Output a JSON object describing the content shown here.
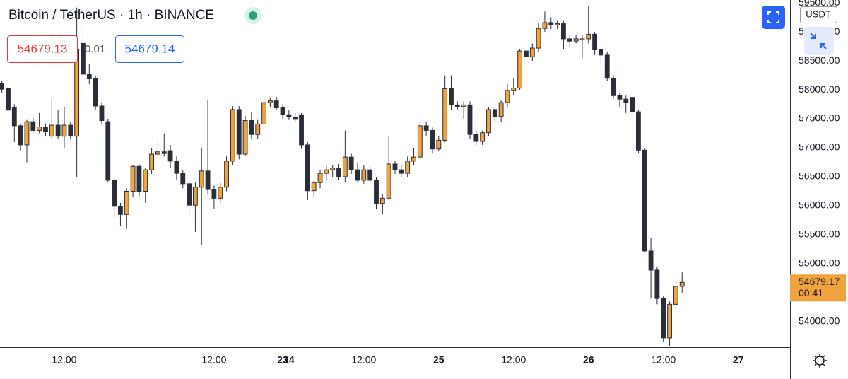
{
  "chart_data": {
    "type": "candlestick",
    "title": "Bitcoin / TetherUS · 1h · BINANCE",
    "order_panel": {
      "sell": "54679.13",
      "spread": "0.01",
      "buy": "54679.14"
    },
    "currency": "USDT",
    "last_price": 54679.17,
    "countdown": "00:41",
    "up_color": "#f0a23c",
    "down_color": "#2a2e39",
    "grid": false,
    "xlim": [
      -22.3,
      104.3
    ],
    "ylim": [
      53560,
      59550
    ],
    "xticks": [
      {
        "value": -12,
        "label": "12:00"
      },
      23,
      {
        "value": 12,
        "label": "12:00"
      },
      {
        "value": 24,
        "label": "24"
      },
      {
        "value": 36,
        "label": "12:00"
      },
      {
        "value": 48,
        "label": "25"
      },
      {
        "value": 60,
        "label": "12:00"
      },
      {
        "value": 72,
        "label": "26"
      },
      {
        "value": 84,
        "label": "12:00"
      },
      {
        "value": 96,
        "label": "27"
      }
    ],
    "yticks": [
      {
        "value": 54000,
        "label": "54000.00"
      },
      {
        "value": 54500,
        "label": "54500.00"
      },
      {
        "value": 55000,
        "label": "55000.00"
      },
      {
        "value": 55500,
        "label": "55500.00"
      },
      {
        "value": 56000,
        "label": "56000.00"
      },
      {
        "value": 56500,
        "label": "56500.00"
      },
      {
        "value": 57000,
        "label": "57000.00"
      },
      {
        "value": 57500,
        "label": "57500.00"
      },
      {
        "value": 58000,
        "label": "58000.00"
      },
      {
        "value": 58500,
        "label": "58500.00"
      },
      {
        "value": 59000,
        "label": "59000.00"
      },
      {
        "value": 59500,
        "label": "59500.00"
      }
    ],
    "x": [
      -22,
      -21,
      -20,
      -19,
      -18,
      -17,
      -16,
      -15,
      -14,
      -13,
      -12,
      -11,
      -10,
      -9,
      -8,
      -7,
      -6,
      -5,
      -4,
      -3,
      -2,
      -1,
      0,
      1,
      2,
      3,
      4,
      5,
      6,
      7,
      8,
      9,
      10,
      11,
      12,
      13,
      14,
      15,
      16,
      17,
      18,
      19,
      20,
      21,
      22,
      23,
      24,
      25,
      26,
      27,
      28,
      29,
      30,
      31,
      32,
      33,
      34,
      35,
      36,
      37,
      38,
      39,
      40,
      41,
      42,
      43,
      44,
      45,
      46,
      47,
      48,
      49,
      50,
      51,
      52,
      53,
      54,
      55,
      56,
      57,
      58,
      59,
      60,
      61,
      62,
      63,
      64,
      65,
      66,
      67,
      68,
      69,
      70,
      71,
      72,
      73,
      74,
      75,
      76,
      77,
      78,
      79,
      80,
      81,
      82,
      83,
      84,
      85,
      86,
      87
    ],
    "open": [
      58110,
      58020,
      57700,
      57380,
      57050,
      57450,
      57300,
      57360,
      57200,
      57390,
      57200,
      57390,
      57200,
      58800,
      58270,
      58200,
      57720,
      57450,
      56440,
      55990,
      55850,
      56250,
      56680,
      56250,
      56620,
      56890,
      56930,
      56950,
      56770,
      56560,
      56380,
      56010,
      56320,
      56600,
      56280,
      56130,
      56320,
      56770,
      57660,
      56890,
      57470,
      57230,
      57410,
      57780,
      57810,
      57690,
      57570,
      57530,
      57570,
      57050,
      56260,
      56400,
      56560,
      56620,
      56650,
      56500,
      56840,
      56620,
      56440,
      56620,
      56440,
      56040,
      56130,
      56720,
      56620,
      56560,
      56770,
      56840,
      57380,
      57300,
      56980,
      57130,
      58020,
      57740,
      57710,
      57740,
      57230,
      57110,
      57260,
      57660,
      57540,
      57780,
      57990,
      58030,
      58670,
      58570,
      58720,
      59060,
      59160,
      59120,
      59140,
      58880,
      58840,
      58860,
      58880,
      58960,
      58690,
      58600,
      58200,
      57900,
      57840,
      57870,
      57620,
      56960,
      55220,
      54890,
      54400,
      53720,
      54300,
      54610
    ],
    "high": [
      58150,
      58060,
      57750,
      57420,
      57480,
      57520,
      57600,
      57420,
      57840,
      57650,
      57700,
      57450,
      59420,
      59100,
      58450,
      58250,
      57780,
      57500,
      56480,
      56050,
      56300,
      56700,
      56720,
      56650,
      57000,
      57150,
      57250,
      57050,
      56850,
      56620,
      56450,
      56400,
      57000,
      57820,
      56350,
      56400,
      56850,
      57720,
      57720,
      57550,
      57620,
      57480,
      57820,
      57870,
      57880,
      57750,
      57650,
      57600,
      57600,
      57100,
      56450,
      56620,
      56700,
      56700,
      56720,
      57300,
      56900,
      56750,
      56700,
      56680,
      56500,
      56200,
      57200,
      56780,
      56700,
      56850,
      57000,
      57450,
      57450,
      57350,
      57200,
      58250,
      58250,
      57800,
      57800,
      57800,
      57300,
      57300,
      57700,
      57700,
      57820,
      58100,
      58200,
      58700,
      58750,
      58800,
      59150,
      59350,
      59250,
      59200,
      59200,
      58950,
      58950,
      58950,
      59450,
      59000,
      58750,
      58650,
      58250,
      57950,
      57900,
      57900,
      57650,
      57000,
      55450,
      54950,
      54450,
      54350,
      54680,
      54850
    ],
    "low": [
      57950,
      57540,
      57100,
      56950,
      56750,
      57250,
      57250,
      57200,
      57150,
      57150,
      57000,
      57150,
      56500,
      58100,
      58100,
      57650,
      57400,
      56400,
      55800,
      55650,
      55600,
      56150,
      56150,
      56050,
      56550,
      56800,
      56850,
      56650,
      56450,
      56300,
      55800,
      55550,
      55330,
      56200,
      55950,
      56050,
      56250,
      56700,
      56800,
      56850,
      57150,
      57150,
      57350,
      57700,
      57650,
      57500,
      57480,
      57450,
      56980,
      56100,
      56150,
      56300,
      56450,
      56500,
      56450,
      56400,
      56550,
      56400,
      56380,
      56400,
      55950,
      55850,
      56100,
      56550,
      56500,
      56500,
      56700,
      56800,
      57200,
      56900,
      56950,
      57100,
      57650,
      57650,
      57500,
      57150,
      57050,
      57050,
      57200,
      57450,
      57450,
      57700,
      57900,
      58000,
      58500,
      58500,
      58650,
      59000,
      59050,
      59050,
      58700,
      58750,
      58800,
      58550,
      58800,
      58600,
      58450,
      58150,
      57850,
      57700,
      57600,
      57550,
      56900,
      55200,
      54400,
      54300,
      53650,
      53580,
      54200,
      54500
    ],
    "close": [
      58010,
      57650,
      57380,
      57050,
      57450,
      57300,
      57360,
      57280,
      57390,
      57200,
      57390,
      57200,
      58700,
      58270,
      58190,
      57720,
      57470,
      56440,
      55990,
      55850,
      56250,
      56680,
      56250,
      56620,
      56890,
      56930,
      56900,
      56770,
      56560,
      56380,
      56010,
      56320,
      56600,
      56280,
      56130,
      56320,
      56770,
      57660,
      56890,
      57470,
      57230,
      57410,
      57780,
      57810,
      57690,
      57570,
      57530,
      57490,
      57050,
      56260,
      56400,
      56560,
      56620,
      56650,
      56500,
      56840,
      56620,
      56440,
      56620,
      56440,
      56040,
      56130,
      56720,
      56620,
      56560,
      56770,
      56840,
      57380,
      57300,
      56980,
      57130,
      58020,
      57740,
      57710,
      57740,
      57230,
      57110,
      57260,
      57660,
      57540,
      57780,
      57990,
      58030,
      58670,
      58570,
      58720,
      59060,
      59160,
      59120,
      59140,
      58880,
      58840,
      58880,
      58880,
      58960,
      58690,
      58600,
      58200,
      57900,
      57840,
      57780,
      57620,
      56960,
      55220,
      54890,
      54400,
      53720,
      54300,
      54610,
      54679.17
    ]
  }
}
